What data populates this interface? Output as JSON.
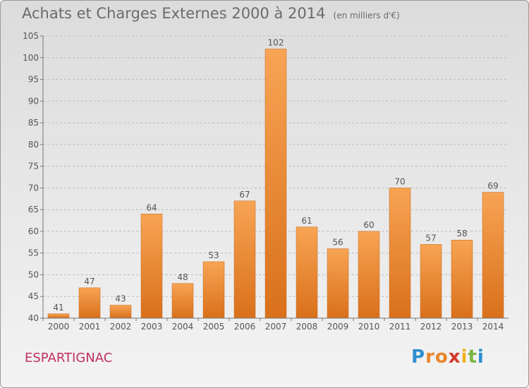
{
  "title": "Achats et Charges Externes 2000 à 2014",
  "subtitle": "(en milliers d'€)",
  "commune": "ESPARTIGNAC",
  "logo": {
    "letters": [
      "P",
      "r",
      "o",
      "x",
      "i",
      "t",
      "i"
    ],
    "colors": [
      "#2e8fcf",
      "#e8862a",
      "#e8862a",
      "#d23a2a",
      "#f0b020",
      "#7cb342",
      "#2e8fcf"
    ]
  },
  "colors": {
    "bar_top": "#f7a454",
    "bar_bottom": "#d9701b",
    "bar_edge": "#c8661a",
    "text": "#555555",
    "grid": "#bcbcbc"
  },
  "chart_data": {
    "type": "bar",
    "categories": [
      "2000",
      "2001",
      "2002",
      "2003",
      "2004",
      "2005",
      "2006",
      "2007",
      "2008",
      "2009",
      "2010",
      "2011",
      "2012",
      "2013",
      "2014"
    ],
    "values": [
      41,
      47,
      43,
      64,
      48,
      53,
      67,
      102,
      61,
      56,
      60,
      70,
      57,
      58,
      69
    ],
    "yticks": [
      40,
      45,
      50,
      55,
      60,
      65,
      70,
      75,
      80,
      85,
      90,
      95,
      100,
      105
    ],
    "ylim": [
      40,
      105
    ],
    "grid": "dashed horizontal",
    "legend": "none"
  }
}
